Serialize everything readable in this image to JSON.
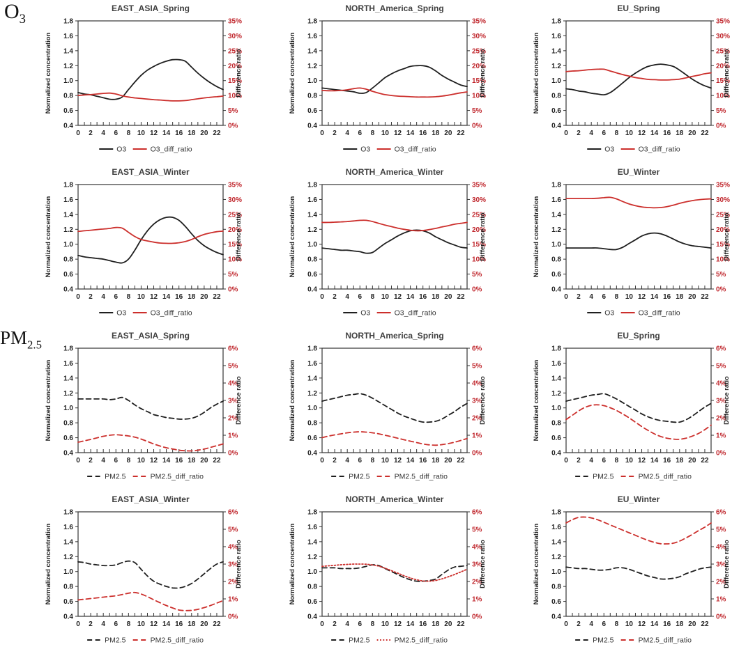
{
  "row_labels": {
    "o3": {
      "base": "O",
      "sub": "3"
    },
    "pm25": {
      "base": "PM",
      "sub": "2.5"
    }
  },
  "colors": {
    "series_black": "#1f1f1f",
    "series_red": "#cc2f2c",
    "right_axis_text": "#c0272d",
    "axis_text": "#1f1f1f",
    "title_text": "#3f3f3f",
    "frame": "#333333"
  },
  "axes_common": {
    "left_label": "Normalized concentration",
    "right_label": "Difference ratio",
    "left_ticks": [
      "1.8",
      "1.6",
      "1.4",
      "1.2",
      "1.0",
      "0.8",
      "0.6",
      "0.4"
    ],
    "left_min": 0.4,
    "left_max": 1.8,
    "x_hours": 24,
    "x_tick_labels": [
      "0",
      "2",
      "4",
      "6",
      "8",
      "10",
      "12",
      "14",
      "16",
      "18",
      "20",
      "22"
    ]
  },
  "chart_data": [
    {
      "key": "o3-east-asia-spring",
      "type": "line",
      "group": "O3",
      "title": "EAST_ASIA_Spring",
      "right_axis": {
        "max": 35,
        "ticks": [
          "35%",
          "30%",
          "25%",
          "20%",
          "15%",
          "10%",
          "5%",
          "0%"
        ]
      },
      "series": [
        {
          "name": "O3",
          "axis": "left",
          "color": "black",
          "style": "solid",
          "values": [
            0.84,
            0.82,
            0.81,
            0.79,
            0.77,
            0.75,
            0.75,
            0.78,
            0.88,
            0.98,
            1.07,
            1.14,
            1.19,
            1.23,
            1.26,
            1.28,
            1.28,
            1.26,
            1.18,
            1.1,
            1.03,
            0.97,
            0.92,
            0.88
          ]
        },
        {
          "name": "O3_diff_ratio",
          "axis": "right",
          "unit": "%",
          "color": "red",
          "style": "solid",
          "values": [
            10.0,
            10.2,
            10.3,
            10.5,
            10.7,
            10.8,
            10.5,
            9.9,
            9.5,
            9.2,
            9.0,
            8.8,
            8.6,
            8.5,
            8.3,
            8.2,
            8.2,
            8.3,
            8.6,
            8.9,
            9.2,
            9.4,
            9.6,
            9.8
          ]
        }
      ]
    },
    {
      "key": "o3-north-america-spring",
      "type": "line",
      "group": "O3",
      "title": "NORTH_America_Spring",
      "right_axis": {
        "max": 35,
        "ticks": [
          "35%",
          "30%",
          "25%",
          "20%",
          "15%",
          "10%",
          "5%",
          "0%"
        ]
      },
      "series": [
        {
          "name": "O3",
          "axis": "left",
          "color": "black",
          "style": "solid",
          "values": [
            0.9,
            0.89,
            0.88,
            0.87,
            0.86,
            0.85,
            0.83,
            0.84,
            0.9,
            0.97,
            1.04,
            1.09,
            1.13,
            1.16,
            1.19,
            1.2,
            1.2,
            1.18,
            1.13,
            1.07,
            1.02,
            0.98,
            0.94,
            0.92
          ]
        },
        {
          "name": "O3_diff_ratio",
          "axis": "right",
          "unit": "%",
          "color": "red",
          "style": "solid",
          "values": [
            11.7,
            11.6,
            11.6,
            11.7,
            11.9,
            12.3,
            12.5,
            12.1,
            11.4,
            10.8,
            10.3,
            10.0,
            9.8,
            9.7,
            9.6,
            9.5,
            9.5,
            9.5,
            9.6,
            9.8,
            10.1,
            10.5,
            10.9,
            11.2
          ]
        }
      ]
    },
    {
      "key": "o3-eu-spring",
      "type": "line",
      "group": "O3",
      "title": "EU_Spring",
      "right_axis": {
        "max": 35,
        "ticks": [
          "35%",
          "30%",
          "25%",
          "20%",
          "15%",
          "10%",
          "5%",
          "0%"
        ]
      },
      "series": [
        {
          "name": "O3",
          "axis": "left",
          "color": "black",
          "style": "solid",
          "values": [
            0.89,
            0.88,
            0.86,
            0.85,
            0.83,
            0.82,
            0.81,
            0.84,
            0.9,
            0.97,
            1.04,
            1.1,
            1.15,
            1.19,
            1.21,
            1.22,
            1.21,
            1.19,
            1.14,
            1.08,
            1.02,
            0.97,
            0.93,
            0.9
          ]
        },
        {
          "name": "O3_diff_ratio",
          "axis": "right",
          "unit": "%",
          "color": "red",
          "style": "solid",
          "values": [
            18.0,
            18.2,
            18.3,
            18.5,
            18.7,
            18.8,
            18.8,
            18.2,
            17.6,
            17.0,
            16.5,
            16.0,
            15.7,
            15.4,
            15.3,
            15.2,
            15.2,
            15.3,
            15.5,
            15.9,
            16.4,
            16.8,
            17.3,
            17.6
          ]
        }
      ]
    },
    {
      "key": "o3-east-asia-winter",
      "type": "line",
      "group": "O3",
      "title": "EAST_ASIA_Winter",
      "right_axis": {
        "max": 35,
        "ticks": [
          "35%",
          "30%",
          "25%",
          "20%",
          "15%",
          "10%",
          "5%",
          "0%"
        ]
      },
      "series": [
        {
          "name": "O3",
          "axis": "left",
          "color": "black",
          "style": "solid",
          "values": [
            0.85,
            0.83,
            0.82,
            0.81,
            0.8,
            0.78,
            0.76,
            0.75,
            0.8,
            0.92,
            1.06,
            1.18,
            1.27,
            1.33,
            1.36,
            1.36,
            1.32,
            1.24,
            1.14,
            1.05,
            0.98,
            0.93,
            0.89,
            0.86
          ]
        },
        {
          "name": "O3_diff_ratio",
          "axis": "right",
          "unit": "%",
          "color": "red",
          "style": "solid",
          "values": [
            19.3,
            19.5,
            19.7,
            19.9,
            20.1,
            20.3,
            20.6,
            20.4,
            19.0,
            17.6,
            16.6,
            16.1,
            15.7,
            15.4,
            15.3,
            15.3,
            15.5,
            15.9,
            16.6,
            17.5,
            18.3,
            18.8,
            19.2,
            19.4
          ]
        }
      ]
    },
    {
      "key": "o3-north-america-winter",
      "type": "line",
      "group": "O3",
      "title": "NORTH_America_Winter",
      "right_axis": {
        "max": 35,
        "ticks": [
          "35%",
          "30%",
          "25%",
          "20%",
          "15%",
          "10%",
          "5%",
          "0%"
        ]
      },
      "series": [
        {
          "name": "O3",
          "axis": "left",
          "color": "black",
          "style": "solid",
          "values": [
            0.95,
            0.94,
            0.93,
            0.92,
            0.92,
            0.91,
            0.9,
            0.88,
            0.89,
            0.95,
            1.01,
            1.06,
            1.11,
            1.15,
            1.18,
            1.19,
            1.18,
            1.15,
            1.1,
            1.06,
            1.02,
            0.99,
            0.96,
            0.95
          ]
        },
        {
          "name": "O3_diff_ratio",
          "axis": "right",
          "unit": "%",
          "color": "red",
          "style": "solid",
          "values": [
            22.3,
            22.3,
            22.4,
            22.5,
            22.6,
            22.8,
            23.0,
            23.0,
            22.6,
            22.0,
            21.4,
            20.9,
            20.4,
            20.0,
            19.7,
            19.5,
            19.6,
            19.9,
            20.3,
            20.8,
            21.2,
            21.7,
            22.0,
            22.3
          ]
        }
      ]
    },
    {
      "key": "o3-eu-winter",
      "type": "line",
      "group": "O3",
      "title": "EU_Winter",
      "right_axis": {
        "max": 35,
        "ticks": [
          "35%",
          "30%",
          "25%",
          "20%",
          "15%",
          "10%",
          "5%",
          "0%"
        ]
      },
      "series": [
        {
          "name": "O3",
          "axis": "left",
          "color": "black",
          "style": "solid",
          "values": [
            0.95,
            0.95,
            0.95,
            0.95,
            0.95,
            0.95,
            0.94,
            0.93,
            0.93,
            0.96,
            1.01,
            1.06,
            1.11,
            1.14,
            1.15,
            1.14,
            1.11,
            1.07,
            1.03,
            1.0,
            0.98,
            0.97,
            0.96,
            0.95
          ]
        },
        {
          "name": "O3_diff_ratio",
          "axis": "right",
          "unit": "%",
          "color": "red",
          "style": "solid",
          "values": [
            30.3,
            30.3,
            30.3,
            30.3,
            30.3,
            30.4,
            30.6,
            30.7,
            30.2,
            29.3,
            28.5,
            27.9,
            27.5,
            27.3,
            27.2,
            27.3,
            27.6,
            28.1,
            28.7,
            29.2,
            29.6,
            29.9,
            30.1,
            30.2
          ]
        }
      ]
    },
    {
      "key": "pm25-east-asia-spring",
      "type": "line",
      "group": "PM2.5",
      "title": "EAST_ASIA_Spring",
      "right_axis": {
        "max": 6,
        "ticks": [
          "6%",
          "5%",
          "4%",
          "3%",
          "2%",
          "1%",
          "0%"
        ]
      },
      "series": [
        {
          "name": "PM2.5",
          "axis": "left",
          "color": "black",
          "style": "dashed",
          "values": [
            1.12,
            1.12,
            1.12,
            1.12,
            1.12,
            1.11,
            1.12,
            1.14,
            1.1,
            1.04,
            0.99,
            0.95,
            0.91,
            0.89,
            0.87,
            0.86,
            0.85,
            0.85,
            0.86,
            0.89,
            0.94,
            1.0,
            1.05,
            1.09
          ]
        },
        {
          "name": "PM2.5_diff_ratio",
          "axis": "right",
          "unit": "%",
          "color": "red",
          "style": "dashed",
          "values": [
            0.6,
            0.68,
            0.76,
            0.85,
            0.94,
            1.0,
            1.03,
            1.0,
            0.96,
            0.89,
            0.78,
            0.64,
            0.5,
            0.38,
            0.28,
            0.21,
            0.14,
            0.11,
            0.1,
            0.14,
            0.21,
            0.3,
            0.4,
            0.5
          ]
        }
      ]
    },
    {
      "key": "pm25-north-america-spring",
      "type": "line",
      "group": "PM2.5",
      "title": "NORTH_America_Spring",
      "right_axis": {
        "max": 6,
        "ticks": [
          "6%",
          "5%",
          "4%",
          "3%",
          "2%",
          "1%",
          "0%"
        ]
      },
      "series": [
        {
          "name": "PM2.5",
          "axis": "left",
          "color": "black",
          "style": "dashed",
          "values": [
            1.09,
            1.11,
            1.13,
            1.15,
            1.17,
            1.18,
            1.19,
            1.17,
            1.13,
            1.08,
            1.03,
            0.98,
            0.93,
            0.89,
            0.86,
            0.83,
            0.81,
            0.81,
            0.82,
            0.85,
            0.9,
            0.95,
            1.01,
            1.06
          ]
        },
        {
          "name": "PM2.5_diff_ratio",
          "axis": "right",
          "unit": "%",
          "color": "red",
          "style": "dashed",
          "values": [
            0.86,
            0.95,
            1.02,
            1.08,
            1.14,
            1.18,
            1.2,
            1.18,
            1.14,
            1.08,
            1.0,
            0.92,
            0.83,
            0.74,
            0.66,
            0.58,
            0.5,
            0.45,
            0.43,
            0.46,
            0.52,
            0.6,
            0.7,
            0.81
          ]
        }
      ]
    },
    {
      "key": "pm25-eu-spring",
      "type": "line",
      "group": "PM2.5",
      "title": "EU_Spring",
      "right_axis": {
        "max": 6,
        "ticks": [
          "6%",
          "5%",
          "4%",
          "3%",
          "2%",
          "1%",
          "0%"
        ]
      },
      "series": [
        {
          "name": "PM2.5",
          "axis": "left",
          "color": "black",
          "style": "dashed",
          "values": [
            1.09,
            1.11,
            1.13,
            1.15,
            1.17,
            1.18,
            1.19,
            1.16,
            1.12,
            1.07,
            1.02,
            0.97,
            0.92,
            0.88,
            0.85,
            0.83,
            0.82,
            0.81,
            0.81,
            0.84,
            0.89,
            0.95,
            1.01,
            1.06
          ]
        },
        {
          "name": "PM2.5_diff_ratio",
          "axis": "right",
          "unit": "%",
          "color": "red",
          "style": "dashed",
          "values": [
            1.9,
            2.15,
            2.4,
            2.6,
            2.72,
            2.75,
            2.7,
            2.58,
            2.42,
            2.22,
            2.0,
            1.75,
            1.5,
            1.28,
            1.08,
            0.93,
            0.83,
            0.78,
            0.77,
            0.83,
            0.95,
            1.1,
            1.32,
            1.58
          ]
        }
      ]
    },
    {
      "key": "pm25-east-asia-winter",
      "type": "line",
      "group": "PM2.5",
      "title": "EAST_ASIA_Winter",
      "right_axis": {
        "max": 6,
        "ticks": [
          "6%",
          "5%",
          "4%",
          "3%",
          "2%",
          "1%",
          "0%"
        ]
      },
      "series": [
        {
          "name": "PM2.5",
          "axis": "left",
          "color": "black",
          "style": "dashed",
          "values": [
            1.13,
            1.12,
            1.1,
            1.09,
            1.08,
            1.08,
            1.09,
            1.12,
            1.14,
            1.12,
            1.03,
            0.94,
            0.87,
            0.83,
            0.8,
            0.78,
            0.78,
            0.8,
            0.84,
            0.9,
            0.97,
            1.04,
            1.1,
            1.13
          ]
        },
        {
          "name": "PM2.5_diff_ratio",
          "axis": "right",
          "unit": "%",
          "color": "red",
          "style": "dashed",
          "values": [
            0.94,
            0.98,
            1.02,
            1.06,
            1.1,
            1.14,
            1.18,
            1.25,
            1.33,
            1.37,
            1.28,
            1.13,
            0.95,
            0.78,
            0.62,
            0.48,
            0.36,
            0.33,
            0.34,
            0.4,
            0.5,
            0.62,
            0.76,
            0.9
          ]
        }
      ]
    },
    {
      "key": "pm25-north-america-winter",
      "type": "line",
      "group": "PM2.5",
      "title": "NORTH_America_Winter",
      "right_axis": {
        "max": 6,
        "ticks": [
          "6%",
          "5%",
          "4%",
          "3%",
          "2%",
          "1%",
          "0%"
        ]
      },
      "series": [
        {
          "name": "PM2.5",
          "axis": "left",
          "color": "black",
          "style": "dashed",
          "values": [
            1.05,
            1.05,
            1.05,
            1.04,
            1.04,
            1.04,
            1.05,
            1.07,
            1.09,
            1.08,
            1.04,
            1.0,
            0.96,
            0.92,
            0.89,
            0.87,
            0.87,
            0.88,
            0.9,
            0.96,
            1.02,
            1.06,
            1.07,
            1.08
          ]
        },
        {
          "name": "PM2.5_diff_ratio",
          "axis": "right",
          "unit": "%",
          "color": "red",
          "style": "dotted",
          "values": [
            2.87,
            2.9,
            2.93,
            2.96,
            2.98,
            3.0,
            3.0,
            2.99,
            2.95,
            2.88,
            2.76,
            2.62,
            2.48,
            2.33,
            2.2,
            2.1,
            2.03,
            2.02,
            2.06,
            2.15,
            2.27,
            2.4,
            2.55,
            2.7
          ]
        }
      ]
    },
    {
      "key": "pm25-eu-winter",
      "type": "line",
      "group": "PM2.5",
      "title": "EU_Winter",
      "right_axis": {
        "max": 6,
        "ticks": [
          "6%",
          "5%",
          "4%",
          "3%",
          "2%",
          "1%",
          "0%"
        ]
      },
      "series": [
        {
          "name": "PM2.5",
          "axis": "left",
          "color": "black",
          "style": "dashed",
          "values": [
            1.06,
            1.05,
            1.04,
            1.04,
            1.03,
            1.02,
            1.02,
            1.03,
            1.05,
            1.05,
            1.03,
            1.0,
            0.97,
            0.94,
            0.92,
            0.9,
            0.9,
            0.91,
            0.93,
            0.97,
            1.0,
            1.03,
            1.05,
            1.06
          ]
        },
        {
          "name": "PM2.5_diff_ratio",
          "axis": "right",
          "unit": "%",
          "color": "red",
          "style": "dashed",
          "values": [
            5.36,
            5.55,
            5.68,
            5.7,
            5.65,
            5.55,
            5.4,
            5.25,
            5.1,
            4.95,
            4.8,
            4.65,
            4.5,
            4.36,
            4.25,
            4.17,
            4.16,
            4.2,
            4.32,
            4.5,
            4.7,
            4.92,
            5.12,
            5.36
          ]
        }
      ]
    }
  ]
}
